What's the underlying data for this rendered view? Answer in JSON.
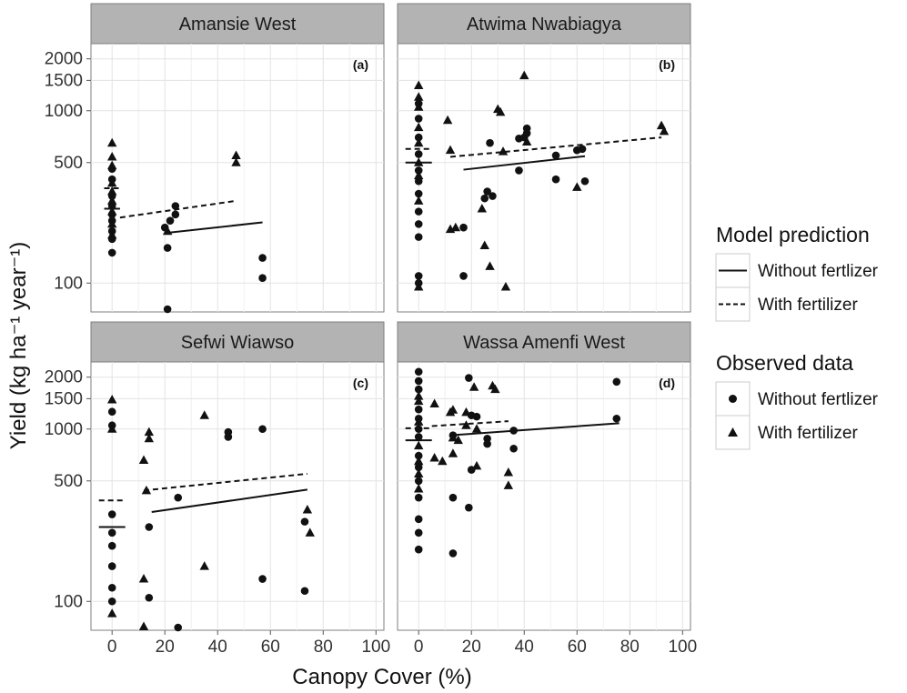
{
  "chart_data": {
    "type": "scatter",
    "xlabel": "Canopy Cover (%)",
    "ylabel": "Yield (kg ha⁻¹ year⁻¹)",
    "y_scale": "log",
    "xlim": [
      -8,
      103
    ],
    "ylim": [
      68,
      2450
    ],
    "x_ticks": [
      0,
      20,
      40,
      60,
      80,
      100
    ],
    "x_tick_labels": [
      "0",
      "20",
      "40",
      "60",
      "80",
      "100"
    ],
    "y_ticks": [
      100,
      500,
      1000,
      1500,
      2000
    ],
    "y_tick_labels": [
      "100",
      "500",
      "1000",
      "1500",
      "2000"
    ],
    "grid": true,
    "legend_placement": "right",
    "legend": {
      "prediction_title": "Model prediction",
      "prediction_items": [
        {
          "label": "Without fertlizer",
          "style": "solid"
        },
        {
          "label": "With fertilizer",
          "style": "dashed"
        }
      ],
      "observed_title": "Observed data",
      "observed_items": [
        {
          "label": "Without fertlizer",
          "marker": "circle"
        },
        {
          "label": "With fertilizer",
          "marker": "triangle"
        }
      ]
    },
    "panels": [
      {
        "title": "Amansie West",
        "tag": "(a)",
        "observed_without_fertilizer": [
          [
            0,
            460
          ],
          [
            0,
            400
          ],
          [
            0,
            320
          ],
          [
            0,
            280
          ],
          [
            0,
            250
          ],
          [
            0,
            230
          ],
          [
            0,
            200
          ],
          [
            0,
            180
          ],
          [
            0,
            150
          ],
          [
            20,
            210
          ],
          [
            21,
            160
          ],
          [
            22,
            230
          ],
          [
            24,
            280
          ],
          [
            24,
            250
          ],
          [
            57,
            140
          ],
          [
            57,
            107
          ],
          [
            21,
            65
          ]
        ],
        "observed_with_fertilizer": [
          [
            0,
            650
          ],
          [
            0,
            540
          ],
          [
            0,
            480
          ],
          [
            0,
            380
          ],
          [
            0,
            340
          ],
          [
            0,
            300
          ],
          [
            0,
            260
          ],
          [
            0,
            220
          ],
          [
            0,
            190
          ],
          [
            21,
            200
          ],
          [
            47,
            550
          ],
          [
            47,
            500
          ]
        ],
        "prediction_without_fertilizer": [
          [
            -3,
            270
          ],
          [
            3,
            270
          ],
          [
            20,
            195
          ],
          [
            57,
            225
          ]
        ],
        "prediction_with_fertilizer": [
          [
            -3,
            355
          ],
          [
            3,
            355
          ],
          [
            3,
            240
          ],
          [
            47,
            300
          ]
        ]
      },
      {
        "title": "Atwima Nwabiagya",
        "tag": "(b)",
        "observed_without_fertilizer": [
          [
            0,
            1100
          ],
          [
            0,
            900
          ],
          [
            0,
            700
          ],
          [
            0,
            560
          ],
          [
            0,
            450
          ],
          [
            0,
            390
          ],
          [
            0,
            330
          ],
          [
            0,
            260
          ],
          [
            0,
            220
          ],
          [
            0,
            185
          ],
          [
            0,
            110
          ],
          [
            0,
            100
          ],
          [
            17,
            210
          ],
          [
            17,
            110
          ],
          [
            25,
            310
          ],
          [
            26,
            340
          ],
          [
            27,
            650
          ],
          [
            28,
            320
          ],
          [
            38,
            690
          ],
          [
            38,
            450
          ],
          [
            40,
            700
          ],
          [
            41,
            790
          ],
          [
            41,
            740
          ],
          [
            52,
            550
          ],
          [
            52,
            400
          ],
          [
            60,
            590
          ],
          [
            62,
            600
          ],
          [
            63,
            390
          ]
        ],
        "observed_with_fertilizer": [
          [
            0,
            1400
          ],
          [
            0,
            1200
          ],
          [
            0,
            1050
          ],
          [
            0,
            800
          ],
          [
            0,
            650
          ],
          [
            0,
            500
          ],
          [
            0,
            420
          ],
          [
            0,
            300
          ],
          [
            0,
            95
          ],
          [
            11,
            880
          ],
          [
            12,
            590
          ],
          [
            12,
            205
          ],
          [
            14,
            210
          ],
          [
            24,
            270
          ],
          [
            25,
            165
          ],
          [
            27,
            125
          ],
          [
            30,
            1020
          ],
          [
            31,
            980
          ],
          [
            32,
            580
          ],
          [
            33,
            95
          ],
          [
            40,
            1600
          ],
          [
            41,
            660
          ],
          [
            60,
            360
          ],
          [
            92,
            820
          ],
          [
            93,
            760
          ]
        ],
        "prediction_without_fertilizer": [
          [
            -5,
            500
          ],
          [
            5,
            500
          ],
          [
            17,
            455
          ],
          [
            63,
            545
          ]
        ],
        "prediction_with_fertilizer": [
          [
            -5,
            600
          ],
          [
            5,
            600
          ],
          [
            12,
            540
          ],
          [
            92,
            700
          ]
        ]
      },
      {
        "title": "Sefwi Wiawso",
        "tag": "(c)",
        "observed_without_fertilizer": [
          [
            0,
            1260
          ],
          [
            0,
            1050
          ],
          [
            0,
            320
          ],
          [
            0,
            250
          ],
          [
            0,
            210
          ],
          [
            0,
            160
          ],
          [
            0,
            120
          ],
          [
            0,
            100
          ],
          [
            14,
            270
          ],
          [
            14,
            105
          ],
          [
            25,
            400
          ],
          [
            25,
            60
          ],
          [
            44,
            960
          ],
          [
            44,
            900
          ],
          [
            57,
            1000
          ],
          [
            57,
            135
          ],
          [
            73,
            290
          ],
          [
            73,
            115
          ]
        ],
        "observed_with_fertilizer": [
          [
            0,
            1480
          ],
          [
            0,
            1000
          ],
          [
            0,
            85
          ],
          [
            12,
            660
          ],
          [
            12,
            135
          ],
          [
            12,
            62
          ],
          [
            13,
            440
          ],
          [
            14,
            960
          ],
          [
            14,
            880
          ],
          [
            35,
            1200
          ],
          [
            35,
            160
          ],
          [
            74,
            340
          ],
          [
            75,
            250
          ]
        ],
        "prediction_without_fertilizer": [
          [
            -5,
            270
          ],
          [
            5,
            270
          ],
          [
            15,
            330
          ],
          [
            74,
            445
          ]
        ],
        "prediction_with_fertilizer": [
          [
            -5,
            385
          ],
          [
            5,
            385
          ],
          [
            12,
            440
          ],
          [
            74,
            550
          ]
        ]
      },
      {
        "title": "Wassa Amenfi West",
        "tag": "(d)",
        "observed_without_fertilizer": [
          [
            0,
            2150
          ],
          [
            0,
            1900
          ],
          [
            0,
            1700
          ],
          [
            0,
            1300
          ],
          [
            0,
            1150
          ],
          [
            0,
            1000
          ],
          [
            0,
            900
          ],
          [
            0,
            700
          ],
          [
            0,
            600
          ],
          [
            0,
            500
          ],
          [
            0,
            400
          ],
          [
            0,
            300
          ],
          [
            0,
            250
          ],
          [
            0,
            200
          ],
          [
            13,
            920
          ],
          [
            13,
            400
          ],
          [
            13,
            190
          ],
          [
            19,
            1980
          ],
          [
            19,
            350
          ],
          [
            20,
            580
          ],
          [
            20,
            1200
          ],
          [
            22,
            1180
          ],
          [
            26,
            880
          ],
          [
            26,
            820
          ],
          [
            36,
            980
          ],
          [
            36,
            770
          ],
          [
            75,
            1880
          ],
          [
            75,
            1150
          ]
        ],
        "observed_with_fertilizer": [
          [
            0,
            1550
          ],
          [
            0,
            1450
          ],
          [
            0,
            1100
          ],
          [
            0,
            800
          ],
          [
            0,
            650
          ],
          [
            0,
            550
          ],
          [
            0,
            450
          ],
          [
            6,
            1400
          ],
          [
            6,
            680
          ],
          [
            9,
            650
          ],
          [
            12,
            1250
          ],
          [
            13,
            1290
          ],
          [
            13,
            890
          ],
          [
            13,
            720
          ],
          [
            15,
            860
          ],
          [
            18,
            1250
          ],
          [
            18,
            1050
          ],
          [
            21,
            1750
          ],
          [
            22,
            1000
          ],
          [
            22,
            610
          ],
          [
            28,
            1780
          ],
          [
            29,
            1700
          ],
          [
            34,
            560
          ],
          [
            34,
            470
          ]
        ],
        "prediction_without_fertilizer": [
          [
            -5,
            860
          ],
          [
            5,
            860
          ],
          [
            12,
            920
          ],
          [
            76,
            1080
          ]
        ],
        "prediction_with_fertilizer": [
          [
            -5,
            1010
          ],
          [
            5,
            1010
          ],
          [
            5,
            1040
          ],
          [
            34,
            1110
          ]
        ]
      }
    ]
  }
}
